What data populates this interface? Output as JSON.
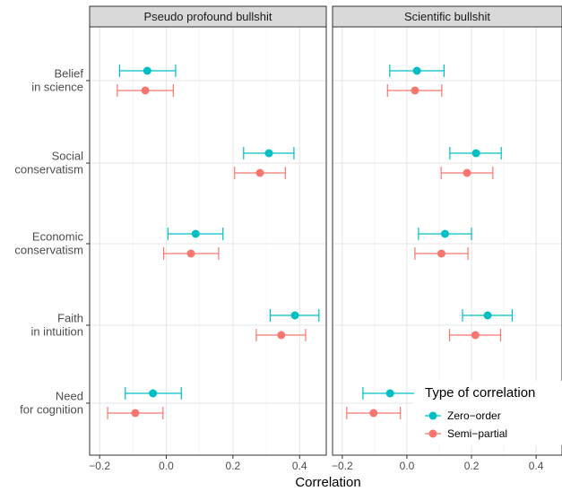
{
  "chart_data": {
    "type": "scatter",
    "xlabel": "Correlation",
    "xlim": [
      -0.23,
      0.48
    ],
    "xticks": [
      -0.2,
      0.0,
      0.2,
      0.4
    ],
    "xtick_labels": [
      "−0.2",
      "0.0",
      "0.2",
      "0.4"
    ],
    "grid": true,
    "categories": [
      "Belief\nin science",
      "Social\nconservatism",
      "Economic\nconservatism",
      "Faith\nin intuition",
      "Need\nfor cognition"
    ],
    "panels": [
      {
        "title": "Pseudo profound bullshit",
        "series": [
          {
            "name": "Zero−order",
            "values": [
              -0.057,
              0.308,
              0.088,
              0.386,
              -0.04
            ],
            "lower": [
              -0.14,
              0.232,
              0.005,
              0.312,
              -0.123
            ],
            "upper": [
              0.028,
              0.383,
              0.17,
              0.458,
              0.045
            ]
          },
          {
            "name": "Semi−partial",
            "values": [
              -0.063,
              0.281,
              0.074,
              0.345,
              -0.093
            ],
            "lower": [
              -0.147,
              0.205,
              -0.008,
              0.27,
              -0.176
            ],
            "upper": [
              0.021,
              0.357,
              0.157,
              0.418,
              -0.01
            ]
          }
        ]
      },
      {
        "title": "Scientific bullshit",
        "series": [
          {
            "name": "Zero−order",
            "values": [
              0.031,
              0.214,
              0.118,
              0.25,
              -0.052
            ],
            "lower": [
              -0.053,
              0.133,
              0.036,
              0.172,
              -0.136
            ],
            "upper": [
              0.115,
              0.292,
              0.2,
              0.326,
              0.033
            ]
          },
          {
            "name": "Semi−partial",
            "values": [
              0.025,
              0.186,
              0.107,
              0.212,
              -0.103
            ],
            "lower": [
              -0.06,
              0.106,
              0.025,
              0.132,
              -0.186
            ],
            "upper": [
              0.108,
              0.266,
              0.189,
              0.29,
              -0.02
            ]
          }
        ]
      }
    ],
    "legend": {
      "title": "Type of correlation",
      "position": "bottom-right",
      "items": [
        {
          "label": "Zero−order",
          "color": "#00bfc4"
        },
        {
          "label": "Semi−partial",
          "color": "#f8766d"
        }
      ]
    },
    "colors": {
      "Zero−order": "#00bfc4",
      "Semi−partial": "#f8766d"
    }
  }
}
